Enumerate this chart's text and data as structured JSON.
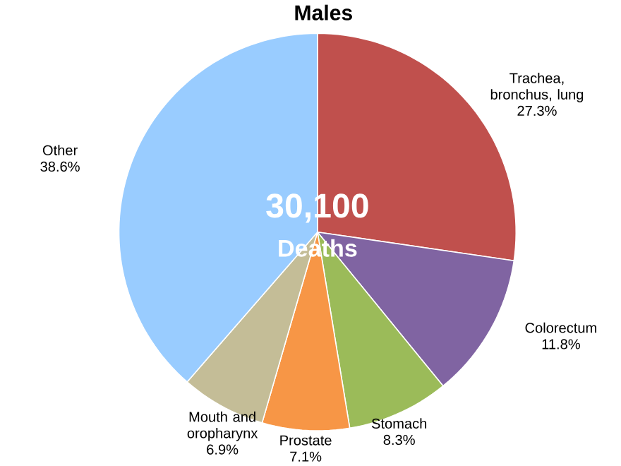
{
  "chart_data": {
    "type": "pie",
    "title": "Males",
    "categories": [
      "Trachea, bronchus, lung",
      "Colorectum",
      "Stomach",
      "Prostate",
      "Mouth and oropharynx",
      "Other"
    ],
    "values": [
      27.3,
      11.8,
      8.3,
      7.1,
      6.9,
      38.6
    ],
    "value_labels": [
      "27.3%",
      "11.8%",
      "8.3%",
      "7.1%",
      "6.9%",
      "38.6%"
    ],
    "colors": [
      "#c0504d",
      "#8064a2",
      "#9bbb59",
      "#f79646",
      "#c4bd97",
      "#99ccff"
    ],
    "annotations": [
      "30,100",
      "Deaths"
    ]
  }
}
